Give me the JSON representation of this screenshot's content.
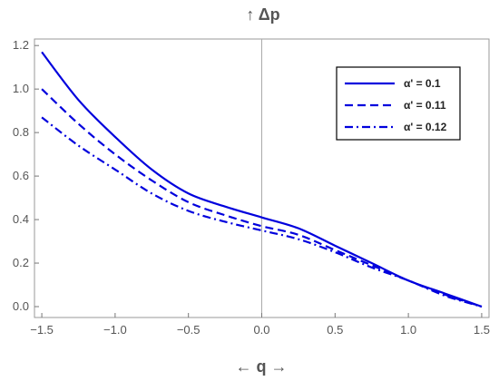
{
  "chart_data": {
    "type": "line",
    "title": "",
    "xlabel": "← q →",
    "ylabel": "↑ Δp",
    "xlim": [
      -1.55,
      1.55
    ],
    "ylim": [
      -0.05,
      1.23
    ],
    "xticks": [
      -1.5,
      -1.0,
      -0.5,
      0.0,
      0.5,
      1.0,
      1.5
    ],
    "xtick_labels": [
      "−1.5",
      "−1.0",
      "−0.5",
      "0.0",
      "0.5",
      "1.0",
      "1.5"
    ],
    "yticks": [
      0.0,
      0.2,
      0.4,
      0.6,
      0.8,
      1.0,
      1.2
    ],
    "ytick_labels": [
      "0.0",
      "0.2",
      "0.4",
      "0.6",
      "0.8",
      "1.0",
      "1.2"
    ],
    "grid": false,
    "legend_position": "top-right",
    "series_color": "#0000dd",
    "zero_line_color": "#aaaaaa",
    "series": [
      {
        "name": "α' =  0.1",
        "style": "solid",
        "x": [
          -1.5,
          -1.25,
          -1.0,
          -0.75,
          -0.5,
          -0.25,
          0.0,
          0.25,
          0.5,
          0.75,
          1.0,
          1.25,
          1.5
        ],
        "y": [
          1.17,
          0.95,
          0.78,
          0.63,
          0.52,
          0.46,
          0.41,
          0.36,
          0.28,
          0.2,
          0.12,
          0.06,
          0.0
        ]
      },
      {
        "name": "α' = 0.11",
        "style": "dashed",
        "x": [
          -1.5,
          -1.25,
          -1.0,
          -0.75,
          -0.5,
          -0.25,
          0.0,
          0.25,
          0.5,
          0.75,
          1.0,
          1.25,
          1.5
        ],
        "y": [
          1.0,
          0.84,
          0.7,
          0.58,
          0.48,
          0.42,
          0.37,
          0.33,
          0.26,
          0.19,
          0.12,
          0.055,
          0.0
        ]
      },
      {
        "name": "α' = 0.12",
        "style": "dashdot",
        "x": [
          -1.5,
          -1.25,
          -1.0,
          -0.75,
          -0.5,
          -0.25,
          0.0,
          0.25,
          0.5,
          0.75,
          1.0,
          1.25,
          1.5
        ],
        "y": [
          0.87,
          0.74,
          0.63,
          0.52,
          0.44,
          0.39,
          0.35,
          0.31,
          0.25,
          0.18,
          0.12,
          0.05,
          0.0
        ]
      }
    ]
  }
}
